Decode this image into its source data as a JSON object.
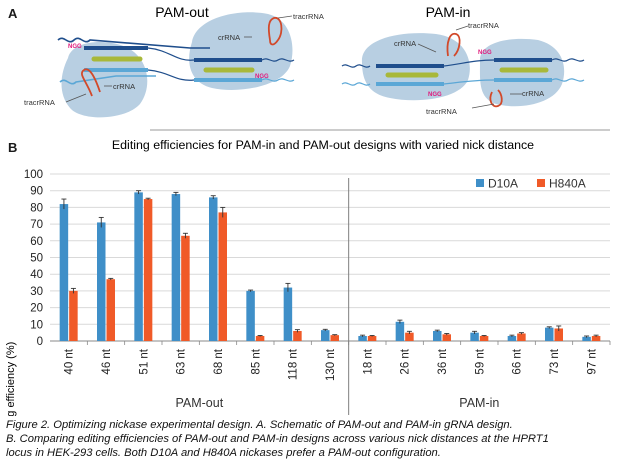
{
  "panel_a": {
    "letter": "A",
    "left_title": "PAM-out",
    "right_title": "PAM-in",
    "labels": {
      "ngg": "NGG",
      "crrna": "crRNA",
      "tracrrna": "tracrRNA"
    }
  },
  "panel_b": {
    "letter": "B"
  },
  "colors": {
    "d10a": "#3f8fc8",
    "h840a": "#f05a28",
    "grid": "#d9d9d9",
    "divider": "#7f7f7f",
    "cas9_blob": "#b8cfe2",
    "dna_dark": "#1f4e8c",
    "dna_light": "#5ba7d6",
    "guide": "#a8b83a",
    "tracr": "#d2492a",
    "ngg": "#e0187a"
  },
  "chart_data": {
    "type": "bar",
    "title": "Editing efficiencies for PAM-in and PAM-out designs with varied nick distance",
    "ylabel": "Editing efficiency (%)",
    "xlabel": "",
    "ylim": [
      0,
      100
    ],
    "yticks": [
      0,
      10,
      20,
      30,
      40,
      50,
      60,
      70,
      80,
      90,
      100
    ],
    "grid": true,
    "legend_position": "top-right",
    "categories": [
      "40 nt",
      "46 nt",
      "51 nt",
      "63 nt",
      "68 nt",
      "85 nt",
      "118 nt",
      "130 nt",
      "18 nt",
      "26 nt",
      "36 nt",
      "59 nt",
      "66 nt",
      "73 nt",
      "97 nt"
    ],
    "groups": [
      {
        "label": "PAM-out",
        "count": 8
      },
      {
        "label": "PAM-in",
        "count": 7
      }
    ],
    "series": [
      {
        "name": "D10A",
        "values": [
          82,
          71,
          89,
          88,
          86,
          30,
          32,
          6.5,
          3,
          11.5,
          6,
          5,
          3,
          8,
          2.5
        ],
        "errors": [
          3,
          3,
          1,
          1,
          1,
          0.5,
          2.5,
          0.5,
          0.5,
          1,
          0.5,
          0.8,
          0.5,
          0.5,
          0.5
        ]
      },
      {
        "name": "H840A",
        "values": [
          30,
          37,
          85,
          63,
          77,
          3,
          6,
          3.5,
          3,
          5,
          4,
          3,
          4.5,
          7.5,
          3
        ],
        "errors": [
          1.5,
          0.5,
          0.5,
          1.5,
          3,
          0.3,
          0.8,
          0.3,
          0.3,
          0.8,
          0.5,
          0.3,
          0.5,
          1.5,
          0.5
        ]
      }
    ]
  },
  "caption": {
    "line1": "Figure 2. Optimizing nickase experimental design. A. Schematic of PAM-out and PAM-in gRNA design.",
    "line2": "B. Comparing editing efficiencies of PAM-out and PAM-in designs across various nick distances at the HPRT1",
    "line3": "locus in HEK-293 cells. Both D10A and H840A nickases prefer a PAM-out configuration."
  }
}
